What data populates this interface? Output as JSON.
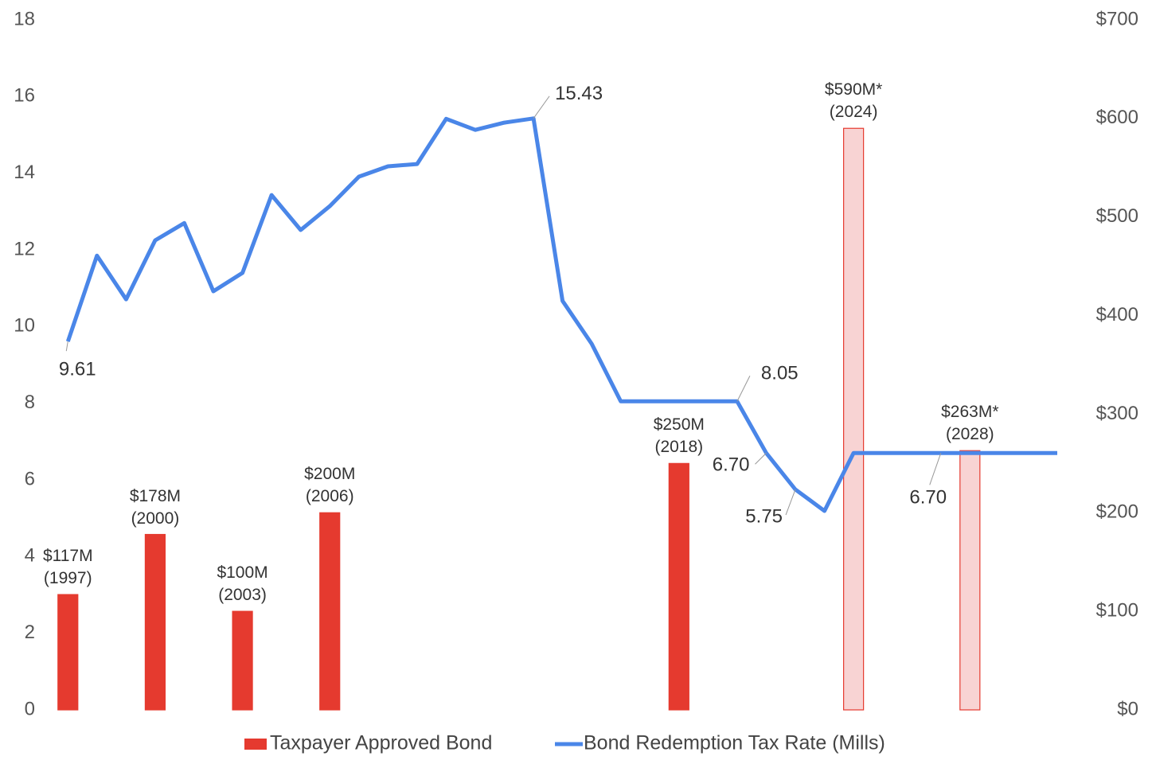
{
  "chart_data": {
    "type": "bar_line",
    "categories": [
      null,
      null,
      null,
      null,
      null,
      null,
      null,
      null,
      null,
      null,
      null,
      null,
      null,
      null,
      null,
      null,
      null,
      null,
      null,
      null,
      null,
      null,
      null,
      null,
      null,
      null,
      null,
      null,
      null,
      null,
      null,
      null,
      null,
      null,
      null
    ],
    "series": [
      {
        "name": "Taxpayer Approved Bond",
        "type": "bar",
        "axis": "y2",
        "color": "#e53a2f",
        "colors": [
          "#e53a2f",
          null,
          null,
          "#e53a2f",
          null,
          null,
          "#e53a2f",
          null,
          null,
          "#e53a2f",
          null,
          null,
          null,
          null,
          null,
          null,
          null,
          null,
          null,
          null,
          null,
          "#e53a2f",
          null,
          null,
          null,
          null,
          null,
          "#f8d3d3",
          null,
          null,
          null,
          "#f8d3d3",
          null,
          null,
          null
        ],
        "values": [
          117,
          null,
          null,
          178,
          null,
          null,
          100,
          null,
          null,
          200,
          null,
          null,
          null,
          null,
          null,
          null,
          null,
          null,
          null,
          null,
          null,
          250,
          null,
          null,
          null,
          null,
          null,
          590,
          null,
          null,
          null,
          263,
          null,
          null,
          null
        ],
        "value_labels": [
          "$117M\n(1997)",
          null,
          null,
          "$178M\n(2000)",
          null,
          null,
          "$100M\n(2003)",
          null,
          null,
          "$200M\n(2006)",
          null,
          null,
          null,
          null,
          null,
          null,
          null,
          null,
          null,
          null,
          null,
          "$250M\n(2018)",
          null,
          null,
          null,
          null,
          null,
          "$590M*\n(2024)",
          null,
          null,
          null,
          "$263M*\n(2028)",
          null,
          null,
          null
        ]
      },
      {
        "name": "Bond Redemption Tax Rate (Mills)",
        "type": "line",
        "axis": "y",
        "color": "#4a86e8",
        "values": [
          9.61,
          11.85,
          10.71,
          12.25,
          12.7,
          10.92,
          11.4,
          13.43,
          12.52,
          13.14,
          13.91,
          14.18,
          14.24,
          15.42,
          15.13,
          15.32,
          15.43,
          10.67,
          9.55,
          8.05,
          8.05,
          8.05,
          8.05,
          8.05,
          6.7,
          5.75,
          5.19,
          6.7,
          6.7,
          6.7,
          6.7,
          6.7,
          6.7,
          6.7,
          6.7
        ],
        "value_labels": [
          "9.61",
          null,
          null,
          null,
          null,
          null,
          null,
          null,
          null,
          null,
          null,
          null,
          null,
          null,
          null,
          null,
          "15.43",
          null,
          null,
          null,
          null,
          null,
          null,
          "8.05",
          "6.70",
          "5.75",
          null,
          null,
          null,
          null,
          "6.70",
          null,
          null,
          null,
          null
        ]
      }
    ],
    "ylim": [
      0,
      18
    ],
    "yticks": [
      0,
      2,
      4,
      6,
      8,
      10,
      12,
      14,
      16,
      18
    ],
    "y2lim": [
      0,
      700
    ],
    "y2ticks": [
      {
        "value": 0,
        "label": "$0"
      },
      {
        "value": 100,
        "label": "$100"
      },
      {
        "value": 200,
        "label": "$200"
      },
      {
        "value": 300,
        "label": "$300"
      },
      {
        "value": 400,
        "label": "$400"
      },
      {
        "value": 500,
        "label": "$500"
      },
      {
        "value": 600,
        "label": "$600"
      },
      {
        "value": 700,
        "label": "$700"
      }
    ],
    "legend": "bottom"
  }
}
